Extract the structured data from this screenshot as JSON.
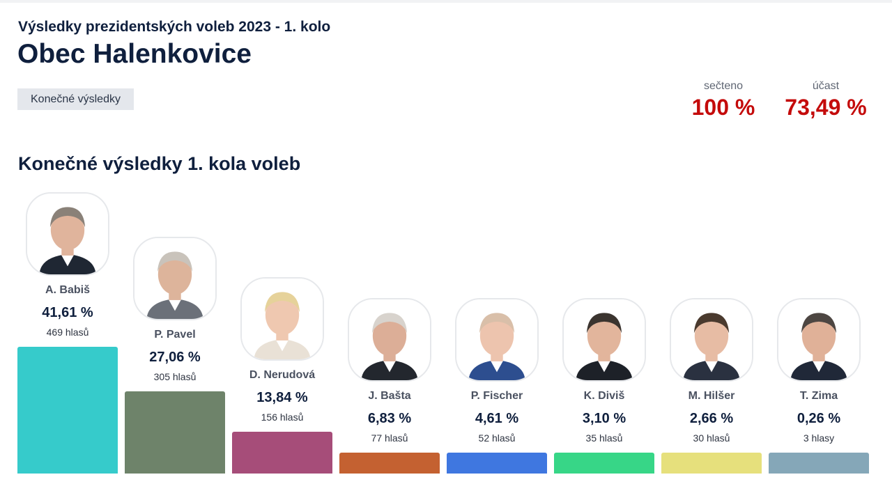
{
  "header": {
    "subtitle": "Výsledky prezidentských voleb 2023 - 1. kolo",
    "title": "Obec Halenkovice",
    "status_badge": "Konečné výsledky"
  },
  "stats": {
    "counted_label": "sečteno",
    "counted_value": "100 %",
    "turnout_label": "účast",
    "turnout_value": "73,49 %"
  },
  "section_title": "Konečné výsledky 1. kola voleb",
  "colors": {
    "headline": "#0f1f3d",
    "stat_value": "#c40b0b"
  },
  "chart_data": {
    "type": "bar",
    "title": "Konečné výsledky 1. kola voleb",
    "categories": [
      "A. Babiš",
      "P. Pavel",
      "D. Nerudová",
      "J. Bašta",
      "P. Fischer",
      "K. Diviš",
      "M. Hilšer",
      "T. Zima"
    ],
    "values": [
      41.61,
      27.06,
      13.84,
      6.83,
      4.61,
      3.1,
      2.66,
      0.26
    ],
    "value_labels": [
      "41,61 %",
      "27,06 %",
      "13,84 %",
      "6,83 %",
      "4,61 %",
      "3,10 %",
      "2,66 %",
      "0,26 %"
    ],
    "votes": [
      469,
      305,
      156,
      77,
      52,
      35,
      30,
      3
    ],
    "vote_labels": [
      "469 hlasů",
      "305 hlasů",
      "156 hlasů",
      "77 hlasů",
      "52 hlasů",
      "35 hlasů",
      "30 hlasů",
      "3 hlasy"
    ],
    "colors": [
      "#36cbcb",
      "#6e836a",
      "#a64d79",
      "#c46131",
      "#3f77e0",
      "#37d687",
      "#e6e07c",
      "#85a7b8"
    ],
    "portrait_icons": [
      "babis-portrait-icon",
      "pavel-portrait-icon",
      "nerudova-portrait-icon",
      "basta-portrait-icon",
      "fischer-portrait-icon",
      "divis-portrait-icon",
      "hilser-portrait-icon",
      "zima-portrait-icon"
    ],
    "xlabel": "",
    "ylabel": "",
    "grid": false
  }
}
